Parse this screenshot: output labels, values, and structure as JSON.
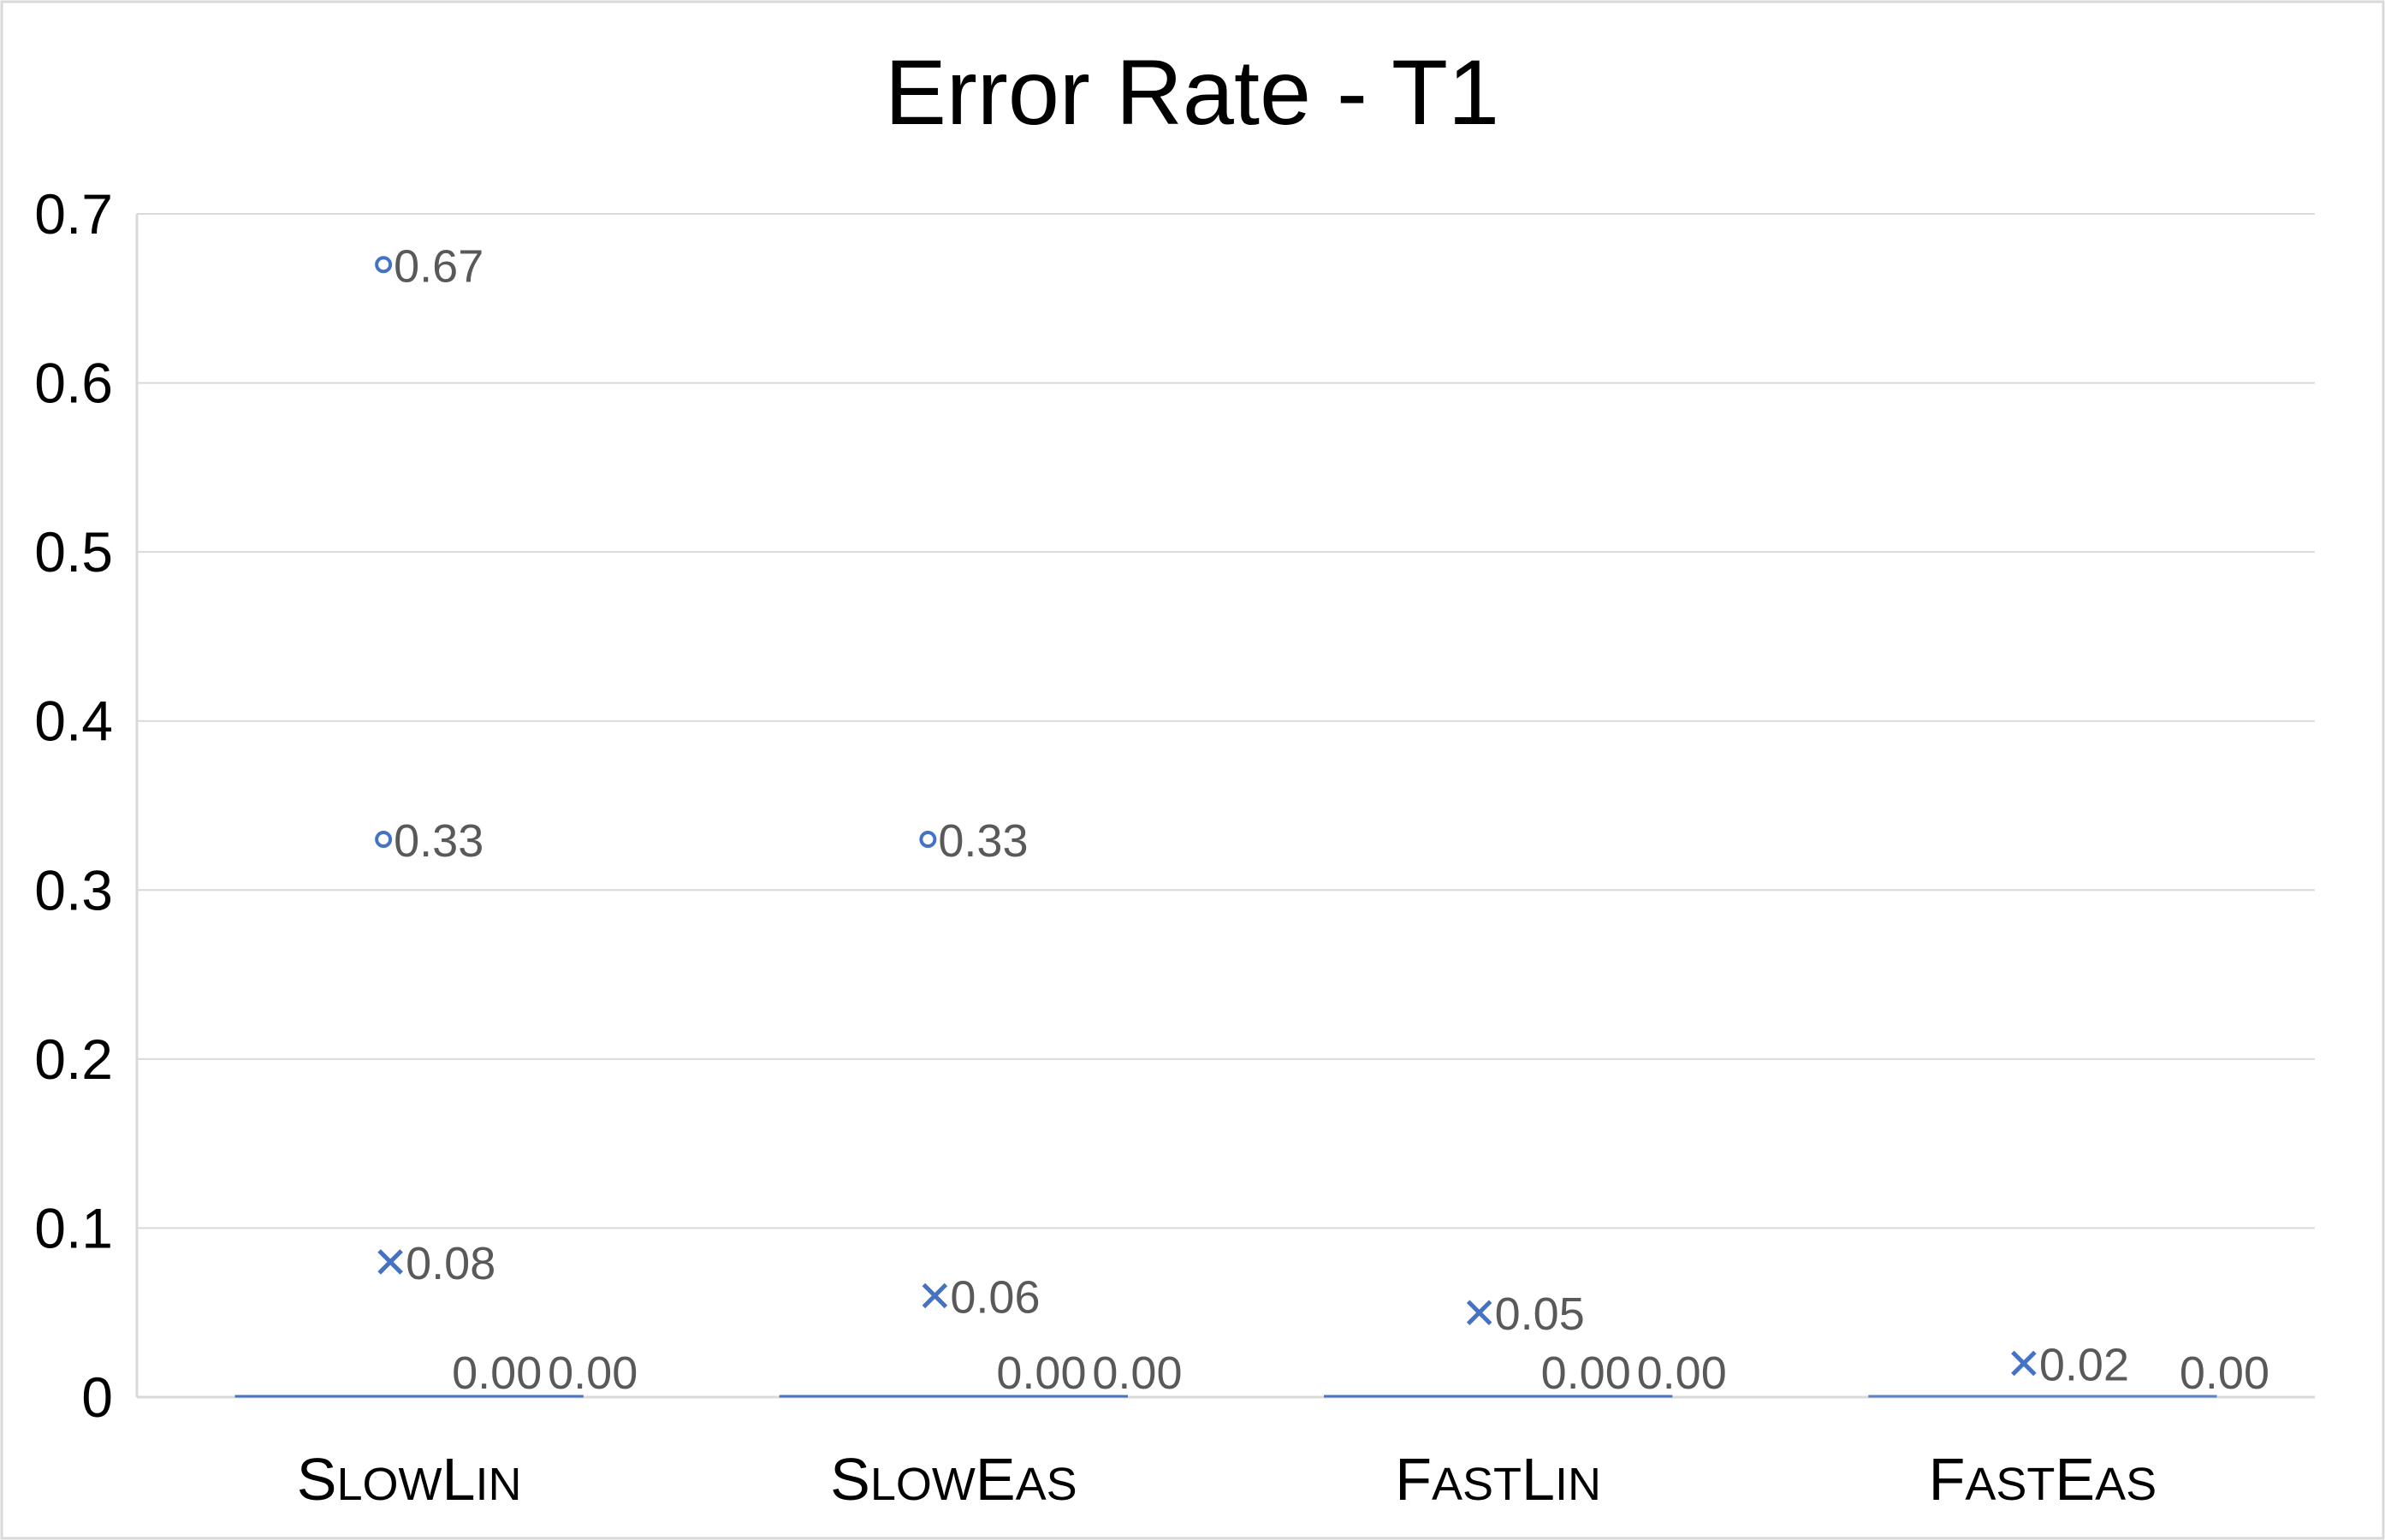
{
  "chart_data": {
    "type": "scatter",
    "title": "Error Rate - T1",
    "xlabel": "",
    "ylabel": "",
    "ylim": [
      0,
      0.7
    ],
    "yticks": [
      "0",
      "0.1",
      "0.2",
      "0.3",
      "0.4",
      "0.5",
      "0.6",
      "0.7"
    ],
    "grid": true,
    "legend": "none",
    "categories": [
      {
        "parts": [
          {
            "t": "S",
            "big": true
          },
          {
            "t": "LOW",
            "big": false
          },
          {
            "t": "L",
            "big": true
          },
          {
            "t": "IN",
            "big": false
          }
        ]
      },
      {
        "parts": [
          {
            "t": "S",
            "big": true
          },
          {
            "t": "LOW",
            "big": false
          },
          {
            "t": "E",
            "big": true
          },
          {
            "t": "AS",
            "big": false
          }
        ]
      },
      {
        "parts": [
          {
            "t": "F",
            "big": true
          },
          {
            "t": "AST",
            "big": false
          },
          {
            "t": "L",
            "big": true
          },
          {
            "t": "IN",
            "big": false
          }
        ]
      },
      {
        "parts": [
          {
            "t": "F",
            "big": true
          },
          {
            "t": "AST",
            "big": false
          },
          {
            "t": "E",
            "big": true
          },
          {
            "t": "AS",
            "big": false
          }
        ]
      }
    ],
    "series": [
      {
        "marker": "circle",
        "color": "#4472c4",
        "points": [
          {
            "category": 0,
            "value": 0.67,
            "label": "0.67"
          },
          {
            "category": 0,
            "value": 0.33,
            "label": "0.33"
          },
          {
            "category": 1,
            "value": 0.33,
            "label": "0.33"
          }
        ]
      },
      {
        "marker": "x",
        "color": "#4472c4",
        "points": [
          {
            "category": 0,
            "value": 0.08,
            "label": "0.08"
          },
          {
            "category": 1,
            "value": 0.06,
            "label": "0.06"
          },
          {
            "category": 2,
            "value": 0.05,
            "label": "0.05"
          },
          {
            "category": 3,
            "value": 0.02,
            "label": "0.02"
          }
        ]
      },
      {
        "marker": "dash",
        "color": "#4472c4",
        "points": [
          {
            "category": 0,
            "value": 0,
            "label": "0.00"
          },
          {
            "category": 0,
            "value": 0,
            "label": "0.00"
          },
          {
            "category": 1,
            "value": 0,
            "label": "0.00"
          },
          {
            "category": 1,
            "value": 0,
            "label": "0.00"
          },
          {
            "category": 2,
            "value": 0,
            "label": "0.00"
          },
          {
            "category": 2,
            "value": 0,
            "label": "0.00"
          },
          {
            "category": 3,
            "value": 0,
            "label": "0.00"
          }
        ]
      }
    ]
  }
}
